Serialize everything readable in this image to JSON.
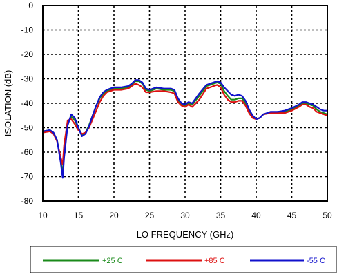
{
  "chart_data": {
    "type": "line",
    "xlabel": "LO FREQUENCY (GHz)",
    "ylabel": "ISOLATION  (dB)",
    "xlim": [
      10,
      50
    ],
    "ylim": [
      -80,
      0
    ],
    "xticks": [
      "10",
      "15",
      "20",
      "25",
      "30",
      "35",
      "40",
      "45",
      "50"
    ],
    "yticks": [
      "0",
      "-10",
      "-20",
      "-30",
      "-40",
      "-50",
      "-60",
      "-70",
      "-80"
    ],
    "grid": true,
    "legend_position": "bottom",
    "series": [
      {
        "name": "+25 C",
        "color": "#1a8a1a",
        "x": [
          10,
          11,
          11.5,
          12,
          12.5,
          12.8,
          13,
          13.5,
          14,
          14.5,
          15,
          15.5,
          16,
          16.5,
          17,
          17.5,
          18,
          18.5,
          19,
          19.5,
          20,
          21,
          22,
          22.5,
          23,
          23.5,
          24,
          24.5,
          25,
          26,
          27,
          28,
          28.5,
          29,
          29.5,
          30,
          30.5,
          31,
          32,
          33,
          33.5,
          34,
          34.5,
          35,
          35.5,
          36,
          36.5,
          37,
          37.5,
          38,
          38.5,
          39,
          39.5,
          40,
          40.5,
          41,
          42,
          43,
          44,
          45,
          46,
          46.5,
          47,
          47.5,
          48,
          48.5,
          49,
          49.5,
          50
        ],
        "y": [
          -51.5,
          -51,
          -52,
          -55,
          -63,
          -69,
          -60,
          -48,
          -45.5,
          -47,
          -50,
          -53,
          -52,
          -49,
          -45,
          -41,
          -38,
          -36,
          -35,
          -34.5,
          -34,
          -34,
          -33.5,
          -32.5,
          -31,
          -31,
          -32,
          -34.5,
          -35,
          -34,
          -34.5,
          -34.5,
          -35,
          -38.5,
          -40.5,
          -41,
          -40,
          -40.5,
          -37,
          -33,
          -32.5,
          -32,
          -31.5,
          -32,
          -35,
          -37,
          -38.5,
          -38.5,
          -38,
          -38,
          -40,
          -43,
          -45.5,
          -46.5,
          -46,
          -44.5,
          -44,
          -43.5,
          -43.5,
          -42.5,
          -41,
          -40,
          -40,
          -40.5,
          -41,
          -42.5,
          -43.5,
          -44,
          -44.5
        ]
      },
      {
        "name": "+85 C",
        "color": "#dd1111",
        "x": [
          10,
          11,
          11.5,
          12,
          12.5,
          12.8,
          13,
          13.5,
          14,
          14.5,
          15,
          15.5,
          16,
          16.5,
          17,
          17.5,
          18,
          18.5,
          19,
          19.5,
          20,
          21,
          22,
          22.5,
          23,
          23.5,
          24,
          24.5,
          25,
          26,
          27,
          28,
          28.5,
          29,
          29.5,
          30,
          30.5,
          31,
          32,
          33,
          33.5,
          34,
          34.5,
          35,
          35.5,
          36,
          36.5,
          37,
          37.5,
          38,
          38.5,
          39,
          39.5,
          40,
          40.5,
          41,
          42,
          43,
          44,
          45,
          46,
          46.5,
          47,
          47.5,
          48,
          48.5,
          49,
          49.5,
          50
        ],
        "y": [
          -52,
          -51.5,
          -52.5,
          -55.5,
          -62,
          -65,
          -57,
          -47,
          -46.5,
          -48.5,
          -51,
          -52.5,
          -52,
          -50,
          -46.5,
          -43,
          -39.5,
          -37,
          -35.5,
          -35,
          -34.5,
          -34.5,
          -34,
          -33,
          -32,
          -32.5,
          -33.5,
          -35.5,
          -35.5,
          -35,
          -35,
          -35.5,
          -36,
          -39.5,
          -41,
          -41.5,
          -40.5,
          -41.5,
          -38.5,
          -34,
          -33.5,
          -33,
          -32.5,
          -33.5,
          -36.5,
          -38.5,
          -39.5,
          -39.5,
          -39,
          -39,
          -41,
          -44,
          -46,
          -46.5,
          -46,
          -44.5,
          -44,
          -44,
          -44,
          -43,
          -41.5,
          -40.5,
          -40.5,
          -41.5,
          -42,
          -43.5,
          -44,
          -44.5,
          -45
        ]
      },
      {
        "name": "-55 C",
        "color": "#1111cc",
        "x": [
          10,
          11,
          11.5,
          12,
          12.5,
          12.8,
          13,
          13.5,
          14,
          14.5,
          15,
          15.5,
          16,
          16.5,
          17,
          17.5,
          18,
          18.5,
          19,
          19.5,
          20,
          21,
          22,
          22.5,
          23,
          23.5,
          24,
          24.5,
          25,
          26,
          27,
          28,
          28.5,
          29,
          29.5,
          30,
          30.5,
          31,
          32,
          33,
          33.5,
          34,
          34.5,
          35,
          35.5,
          36,
          36.5,
          37,
          37.5,
          38,
          38.5,
          39,
          39.5,
          40,
          40.5,
          41,
          42,
          43,
          44,
          45,
          46,
          46.5,
          47,
          47.5,
          48,
          48.5,
          49,
          49.5,
          50
        ],
        "y": [
          -51.5,
          -51,
          -52,
          -55,
          -64,
          -70.5,
          -62,
          -49,
          -44.5,
          -46,
          -50,
          -53.5,
          -52.5,
          -49.5,
          -45,
          -41,
          -37.5,
          -35.5,
          -34.5,
          -34,
          -33.5,
          -33.5,
          -33,
          -32,
          -30.5,
          -30.5,
          -31.5,
          -34,
          -34.5,
          -33.5,
          -34,
          -34,
          -34.5,
          -38,
          -40,
          -40.5,
          -39.5,
          -40,
          -36,
          -32.5,
          -32,
          -31.5,
          -31,
          -31.5,
          -33.5,
          -35,
          -36.5,
          -37,
          -36.5,
          -37,
          -39,
          -42.5,
          -45,
          -46.5,
          -46,
          -44.5,
          -43.5,
          -43.5,
          -43,
          -42,
          -40.5,
          -39.5,
          -39.5,
          -40,
          -40.5,
          -41.5,
          -42.5,
          -43,
          -43
        ]
      }
    ]
  }
}
